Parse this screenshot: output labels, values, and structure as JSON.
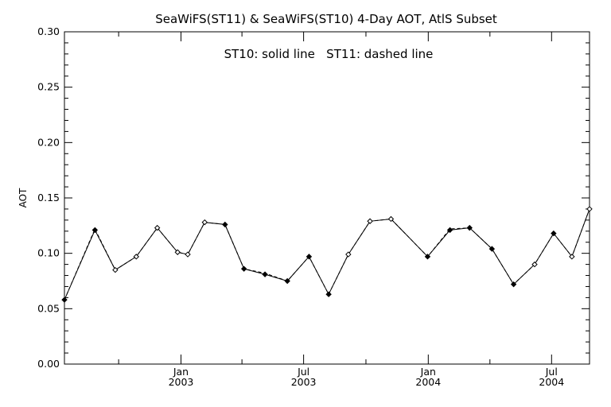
{
  "chart_data": {
    "type": "line",
    "title": "SeaWiFS(ST11) & SeaWiFS(ST10) 4-Day AOT, AtlS Subset",
    "annotation": "ST10: solid line   ST11: dashed line",
    "xlabel": "",
    "ylabel": "AOT",
    "ylim": [
      0.0,
      0.3
    ],
    "xlim": [
      "2002-07-13",
      "2004-08-26"
    ],
    "y_ticks": [
      "0.00",
      "0.05",
      "0.10",
      "0.15",
      "0.20",
      "0.25",
      "0.30"
    ],
    "x_ticks": [
      {
        "month": "Jan",
        "year": "2003",
        "date": "2003-01-01"
      },
      {
        "month": "Jul",
        "year": "2003",
        "date": "2003-07-01"
      },
      {
        "month": "Jan",
        "year": "2004",
        "date": "2004-01-01"
      },
      {
        "month": "Jul",
        "year": "2004",
        "date": "2004-07-01"
      }
    ],
    "x_minor_ticks": [
      "2002-10-01",
      "2003-04-01",
      "2003-10-01",
      "2004-04-01"
    ],
    "grid": false,
    "series": [
      {
        "name": "ST10",
        "style": "solid",
        "x": [
          "2002-07-13",
          "2002-08-27",
          "2002-09-26",
          "2002-10-27",
          "2002-11-27",
          "2002-12-27",
          "2003-01-11",
          "2003-02-05",
          "2003-03-07",
          "2003-04-04",
          "2003-05-05",
          "2003-06-07",
          "2003-07-09",
          "2003-08-07",
          "2003-09-05",
          "2003-10-07",
          "2003-11-07",
          "2003-12-31",
          "2004-02-02",
          "2004-03-02",
          "2004-04-04",
          "2004-05-06",
          "2004-06-06",
          "2004-07-04",
          "2004-07-31",
          "2004-08-26"
        ],
        "y": [
          0.058,
          0.121,
          0.085,
          0.097,
          0.123,
          0.101,
          0.099,
          0.128,
          0.126,
          0.086,
          0.081,
          0.075,
          0.097,
          0.063,
          0.099,
          0.129,
          0.131,
          0.097,
          0.121,
          0.123,
          0.104,
          0.072,
          0.09,
          0.118,
          0.097,
          0.14
        ]
      },
      {
        "name": "ST11",
        "style": "dashed",
        "x": [
          "2002-07-13",
          "2002-08-27",
          "2002-09-26",
          "2002-10-27",
          "2002-11-27",
          "2002-12-27",
          "2003-01-11",
          "2003-02-05",
          "2003-03-07",
          "2003-04-04",
          "2003-05-05",
          "2003-06-07",
          "2003-07-09",
          "2003-08-07",
          "2003-09-05",
          "2003-10-07",
          "2003-11-07",
          "2003-12-31",
          "2004-02-02",
          "2004-03-02",
          "2004-04-04",
          "2004-05-06",
          "2004-06-06",
          "2004-07-04",
          "2004-07-31",
          "2004-08-26"
        ],
        "y": [
          0.058,
          0.122,
          0.085,
          0.097,
          0.123,
          0.101,
          0.099,
          0.128,
          0.126,
          0.086,
          0.082,
          0.075,
          0.097,
          0.063,
          0.099,
          0.129,
          0.131,
          0.097,
          0.122,
          0.123,
          0.104,
          0.072,
          0.09,
          0.118,
          0.097,
          0.14
        ]
      }
    ],
    "filled_markers": [
      true,
      true,
      false,
      false,
      false,
      false,
      false,
      false,
      true,
      true,
      true,
      true,
      true,
      true,
      false,
      false,
      false,
      true,
      true,
      true,
      true,
      true,
      false,
      true,
      false,
      false
    ],
    "colors": {
      "line": "#000000",
      "marker": "#000000",
      "background": "#ffffff"
    }
  }
}
